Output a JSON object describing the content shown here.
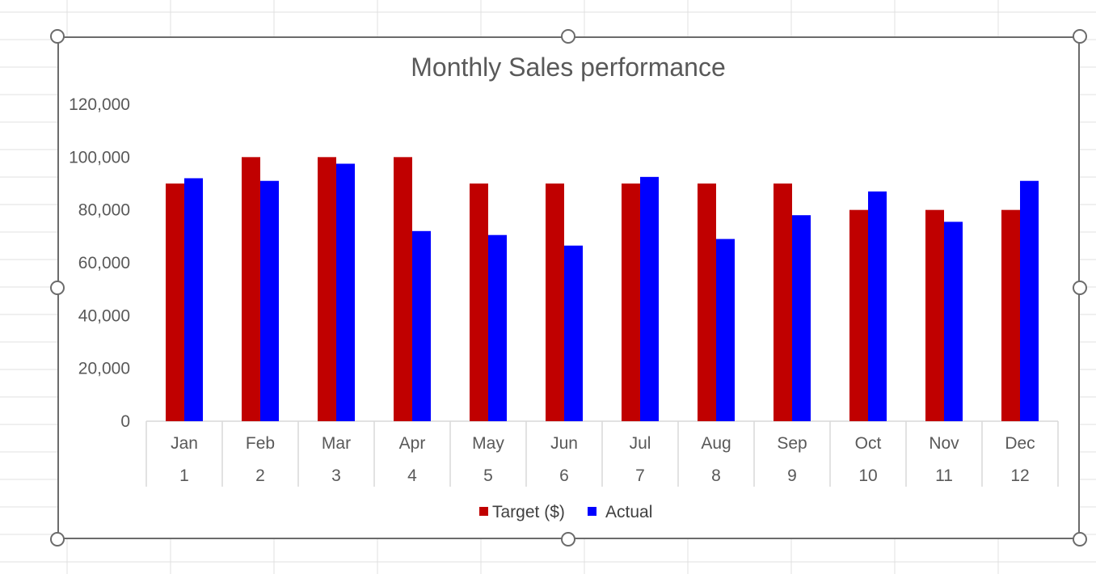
{
  "chart_data": {
    "type": "bar",
    "title": "Monthly Sales performance",
    "categories": [
      "Jan",
      "Feb",
      "Mar",
      "Apr",
      "May",
      "Jun",
      "Jul",
      "Aug",
      "Sep",
      "Oct",
      "Nov",
      "Dec"
    ],
    "category_numbers": [
      "1",
      "2",
      "3",
      "4",
      "5",
      "6",
      "7",
      "8",
      "9",
      "10",
      "11",
      "12"
    ],
    "series": [
      {
        "name": "Target ($)",
        "color": "#c00000",
        "values": [
          90000,
          100000,
          100000,
          100000,
          90000,
          90000,
          90000,
          90000,
          90000,
          80000,
          80000,
          80000
        ]
      },
      {
        "name": "Actual",
        "color": "#0000ff",
        "values": [
          92000,
          91000,
          97500,
          72000,
          70500,
          66500,
          92500,
          69000,
          78000,
          87000,
          75500,
          91000
        ]
      }
    ],
    "y_ticks": [
      0,
      20000,
      40000,
      60000,
      80000,
      100000,
      120000
    ],
    "y_tick_labels": [
      "0",
      "20,000",
      "40,000",
      "60,000",
      "80,000",
      "100,000",
      "120,000"
    ],
    "ylim": [
      0,
      120000
    ],
    "grid": false,
    "legend_position": "bottom"
  }
}
